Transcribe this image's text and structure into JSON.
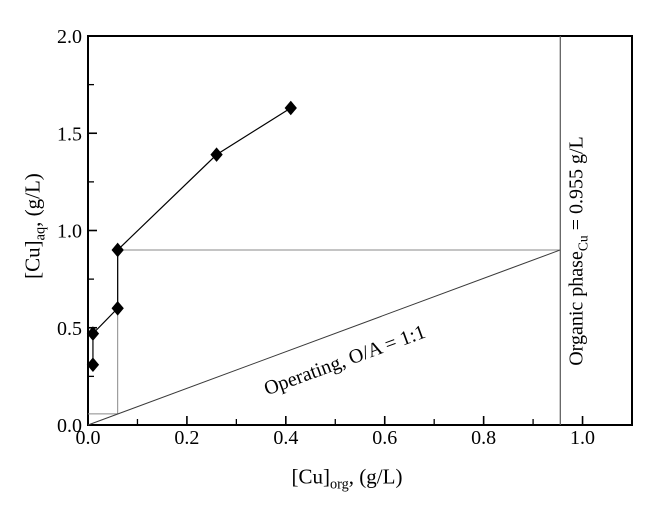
{
  "figure": {
    "background": "#ffffff",
    "line_color": "#000000"
  },
  "chart_data": {
    "type": "scatter",
    "title": "",
    "xlabel_parts": {
      "pre": "[Cu]",
      "sub": "org",
      "post": ", (g/L)"
    },
    "ylabel_parts": {
      "pre": "[Cu]",
      "sub": "aq",
      "post": ", (g/L)"
    },
    "xlim": [
      0,
      1.1
    ],
    "ylim": [
      0,
      2.0
    ],
    "grid": false,
    "legend": "none",
    "x_major_ticks": [
      0,
      0.2,
      0.4,
      0.6,
      0.8,
      1.0
    ],
    "x_major_tick_labels": [
      "0.0",
      "0.2",
      "0.4",
      "0.6",
      "0.8",
      "1.0"
    ],
    "x_minor_ticks": [
      0.1,
      0.3,
      0.5,
      0.7,
      0.9
    ],
    "y_major_ticks": [
      0,
      0.5,
      1.0,
      1.5,
      2.0
    ],
    "y_major_tick_labels": [
      "0.0",
      "0.5",
      "1.0",
      "1.5",
      "2.0"
    ],
    "y_minor_ticks": [
      0.25,
      0.75,
      1.25,
      1.75
    ],
    "series": [
      {
        "name": "equilibrium-isotherm",
        "type": "line-with-markers",
        "marker": "filled-diamond",
        "color": "#000000",
        "points": [
          [
            0.01,
            0.31
          ],
          [
            0.01,
            0.47
          ],
          [
            0.06,
            0.6
          ],
          [
            0.06,
            0.9
          ],
          [
            0.26,
            1.39
          ],
          [
            0.41,
            1.63
          ]
        ]
      },
      {
        "name": "operating-line",
        "type": "line",
        "color": "#3a3a3a",
        "label": "Operating, O/A = 1:1",
        "points": [
          [
            0,
            0
          ],
          [
            0.955,
            0.9
          ]
        ]
      },
      {
        "name": "stage-step-construction",
        "type": "line",
        "color": "#8a8a8a",
        "points": [
          [
            0,
            0.057
          ],
          [
            0.06,
            0.057
          ],
          [
            0.06,
            0.9
          ],
          [
            0.955,
            0.9
          ]
        ]
      },
      {
        "name": "organic-phase-vertical-line",
        "type": "line",
        "color": "#555555",
        "value": 0.955,
        "label_parts": {
          "pre": "Organic phase",
          "sub": "Cu",
          "post": " = 0.955 g/L"
        },
        "points": [
          [
            0.955,
            0
          ],
          [
            0.955,
            2.0
          ]
        ]
      }
    ]
  }
}
